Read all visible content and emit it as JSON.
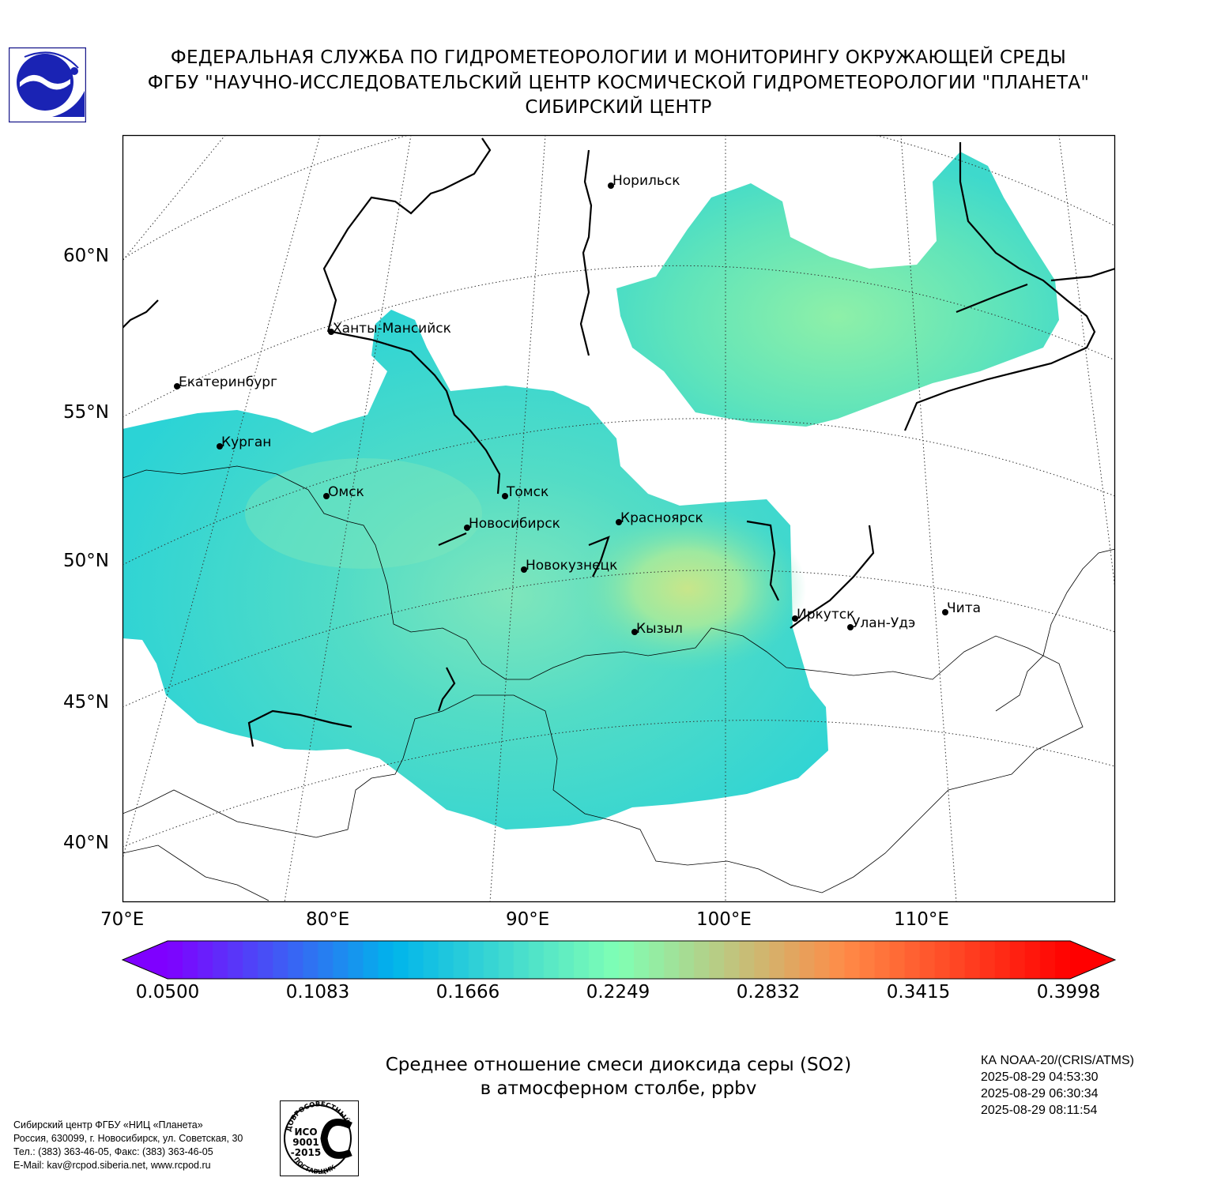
{
  "header": {
    "line1": "ФЕДЕРАЛЬНАЯ СЛУЖБА ПО ГИДРОМЕТЕОРОЛОГИИ И МОНИТОРИНГУ ОКРУЖАЮЩЕЙ СРЕДЫ",
    "line2": "ФГБУ \"НАУЧНО-ИССЛЕДОВАТЕЛЬСКИЙ ЦЕНТР КОСМИЧЕСКОЙ ГИДРОМЕТЕОРОЛОГИИ \"ПЛАНЕТА\"",
    "line3": "СИБИРСКИЙ ЦЕНТР"
  },
  "map": {
    "lat_labels": [
      "60°N",
      "55°N",
      "50°N",
      "45°N",
      "40°N"
    ],
    "lon_labels": [
      "70°E",
      "80°E",
      "90°E",
      "100°E",
      "110°E"
    ],
    "cities": [
      {
        "name": "Норильск"
      },
      {
        "name": "Ханты-Мансийск"
      },
      {
        "name": "Екатеринбург"
      },
      {
        "name": "Курган"
      },
      {
        "name": "Омск"
      },
      {
        "name": "Томск"
      },
      {
        "name": "Новосибирск"
      },
      {
        "name": "Красноярск"
      },
      {
        "name": "Новокузнецк"
      },
      {
        "name": "Иркутск"
      },
      {
        "name": "Улан-Удэ"
      },
      {
        "name": "Чита"
      },
      {
        "name": "Кызыл"
      }
    ]
  },
  "colorbar": {
    "ticks": [
      "0.0500",
      "0.1083",
      "0.1666",
      "0.2249",
      "0.2832",
      "0.3415",
      "0.3998"
    ],
    "min": 0.05,
    "max": 0.3998,
    "extend": "both",
    "colormap": "rainbow",
    "colors": [
      "#7f00ff",
      "#00b4eb",
      "#80ffb4",
      "#ff8b47",
      "#ff0000"
    ]
  },
  "title": {
    "line1": "Среднее отношение смеси диоксида серы (SO2)",
    "line2": "в атмосферном столбе, ppbv"
  },
  "satellite": {
    "name": "КА NOAA-20/(CRIS/ATMS)",
    "times": [
      "2025-08-29 04:53:30",
      "2025-08-29 06:30:34",
      "2025-08-29 08:11:54"
    ]
  },
  "footer": {
    "address": [
      "Сибирский центр ФГБУ «НИЦ «Планета»",
      "Россия, 630099, г. Новосибирск, ул. Советская, 30",
      "Тел.: (383) 363-46-05, Факс: (383) 363-46-05",
      "E-Mail: kav@rcpod.siberia.net, www.rcpod.ru"
    ],
    "iso_badge": {
      "top": "ДОБРОСОВЕСТНЫЙ",
      "middle": [
        "ИСО",
        "9001",
        "-2015"
      ],
      "bottom": "ПОСТАВЩИК"
    }
  }
}
